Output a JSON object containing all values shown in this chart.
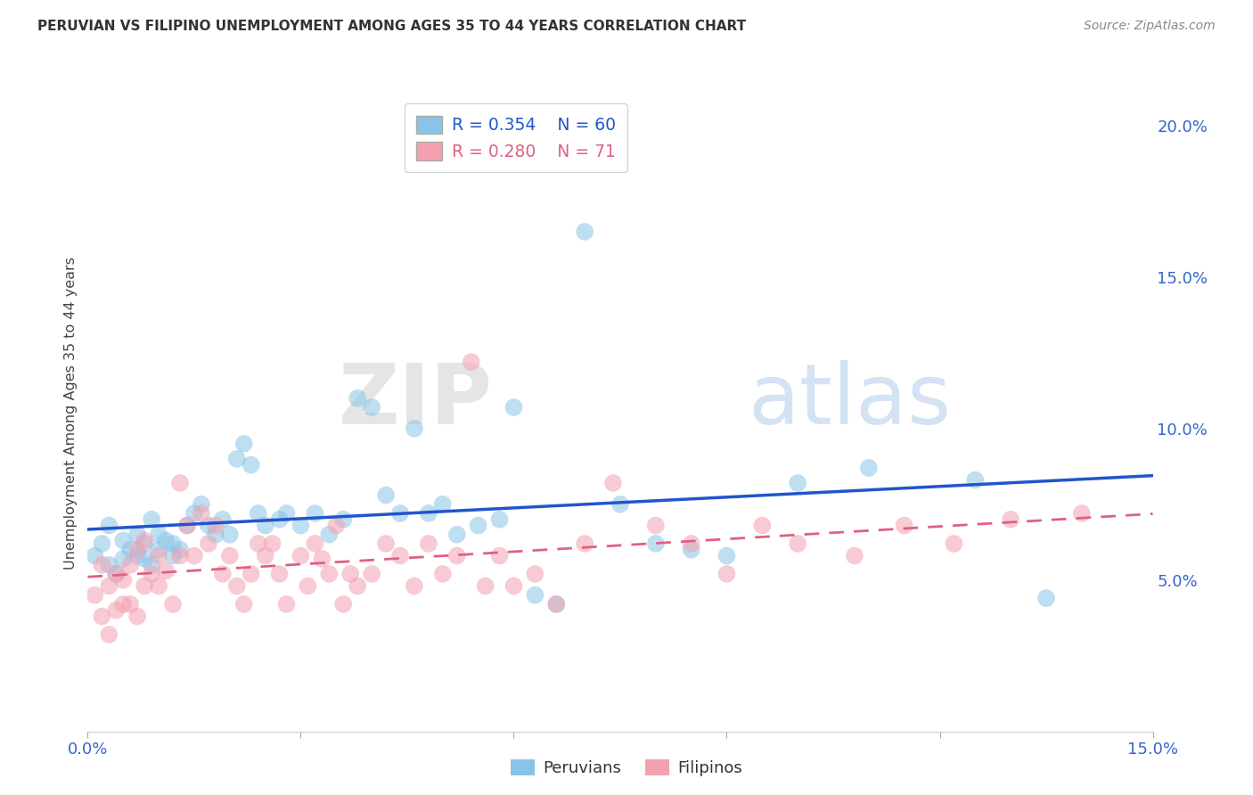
{
  "title": "PERUVIAN VS FILIPINO UNEMPLOYMENT AMONG AGES 35 TO 44 YEARS CORRELATION CHART",
  "source": "Source: ZipAtlas.com",
  "ylabel": "Unemployment Among Ages 35 to 44 years",
  "xlim": [
    0.0,
    0.15
  ],
  "ylim": [
    0.0,
    0.21
  ],
  "x_ticks": [
    0.0,
    0.03,
    0.06,
    0.09,
    0.12,
    0.15
  ],
  "x_tick_labels": [
    "0.0%",
    "",
    "",
    "",
    "",
    "15.0%"
  ],
  "y_ticks_right": [
    0.0,
    0.05,
    0.1,
    0.15,
    0.2
  ],
  "y_tick_labels_right": [
    "",
    "5.0%",
    "10.0%",
    "15.0%",
    "20.0%"
  ],
  "peruvian_color": "#89c4e8",
  "filipino_color": "#f4a0b0",
  "peruvian_line_color": "#2255cc",
  "filipino_line_color": "#e06080",
  "legend_R_peruvian": "R = 0.354",
  "legend_N_peruvian": "N = 60",
  "legend_R_filipino": "R = 0.280",
  "legend_N_filipino": "N = 71",
  "watermark_zip": "ZIP",
  "watermark_atlas": "atlas",
  "peruvian_x": [
    0.001,
    0.002,
    0.003,
    0.003,
    0.004,
    0.005,
    0.005,
    0.006,
    0.007,
    0.007,
    0.008,
    0.008,
    0.009,
    0.009,
    0.01,
    0.01,
    0.011,
    0.012,
    0.012,
    0.013,
    0.014,
    0.015,
    0.016,
    0.017,
    0.018,
    0.019,
    0.02,
    0.021,
    0.022,
    0.023,
    0.024,
    0.025,
    0.027,
    0.028,
    0.03,
    0.032,
    0.034,
    0.036,
    0.038,
    0.04,
    0.042,
    0.044,
    0.046,
    0.048,
    0.05,
    0.052,
    0.055,
    0.058,
    0.06,
    0.063,
    0.066,
    0.07,
    0.075,
    0.08,
    0.085,
    0.09,
    0.1,
    0.11,
    0.125,
    0.135
  ],
  "peruvian_y": [
    0.058,
    0.062,
    0.055,
    0.068,
    0.052,
    0.057,
    0.063,
    0.06,
    0.065,
    0.058,
    0.062,
    0.057,
    0.055,
    0.07,
    0.06,
    0.065,
    0.063,
    0.058,
    0.062,
    0.06,
    0.068,
    0.072,
    0.075,
    0.068,
    0.065,
    0.07,
    0.065,
    0.09,
    0.095,
    0.088,
    0.072,
    0.068,
    0.07,
    0.072,
    0.068,
    0.072,
    0.065,
    0.07,
    0.11,
    0.107,
    0.078,
    0.072,
    0.1,
    0.072,
    0.075,
    0.065,
    0.068,
    0.07,
    0.107,
    0.045,
    0.042,
    0.165,
    0.075,
    0.062,
    0.06,
    0.058,
    0.082,
    0.087,
    0.083,
    0.044
  ],
  "filipino_x": [
    0.001,
    0.002,
    0.002,
    0.003,
    0.003,
    0.004,
    0.004,
    0.005,
    0.005,
    0.006,
    0.006,
    0.007,
    0.007,
    0.008,
    0.008,
    0.009,
    0.01,
    0.01,
    0.011,
    0.012,
    0.013,
    0.013,
    0.014,
    0.015,
    0.016,
    0.017,
    0.018,
    0.019,
    0.02,
    0.021,
    0.022,
    0.023,
    0.024,
    0.025,
    0.026,
    0.027,
    0.028,
    0.03,
    0.031,
    0.032,
    0.033,
    0.034,
    0.035,
    0.036,
    0.037,
    0.038,
    0.04,
    0.042,
    0.044,
    0.046,
    0.048,
    0.05,
    0.052,
    0.054,
    0.056,
    0.058,
    0.06,
    0.063,
    0.066,
    0.07,
    0.074,
    0.08,
    0.085,
    0.09,
    0.095,
    0.1,
    0.108,
    0.115,
    0.122,
    0.13,
    0.14
  ],
  "filipino_y": [
    0.045,
    0.038,
    0.055,
    0.032,
    0.048,
    0.04,
    0.052,
    0.042,
    0.05,
    0.055,
    0.042,
    0.038,
    0.06,
    0.048,
    0.063,
    0.052,
    0.048,
    0.058,
    0.053,
    0.042,
    0.058,
    0.082,
    0.068,
    0.058,
    0.072,
    0.062,
    0.068,
    0.052,
    0.058,
    0.048,
    0.042,
    0.052,
    0.062,
    0.058,
    0.062,
    0.052,
    0.042,
    0.058,
    0.048,
    0.062,
    0.057,
    0.052,
    0.068,
    0.042,
    0.052,
    0.048,
    0.052,
    0.062,
    0.058,
    0.048,
    0.062,
    0.052,
    0.058,
    0.122,
    0.048,
    0.058,
    0.048,
    0.052,
    0.042,
    0.062,
    0.082,
    0.068,
    0.062,
    0.052,
    0.068,
    0.062,
    0.058,
    0.068,
    0.062,
    0.07,
    0.072
  ]
}
